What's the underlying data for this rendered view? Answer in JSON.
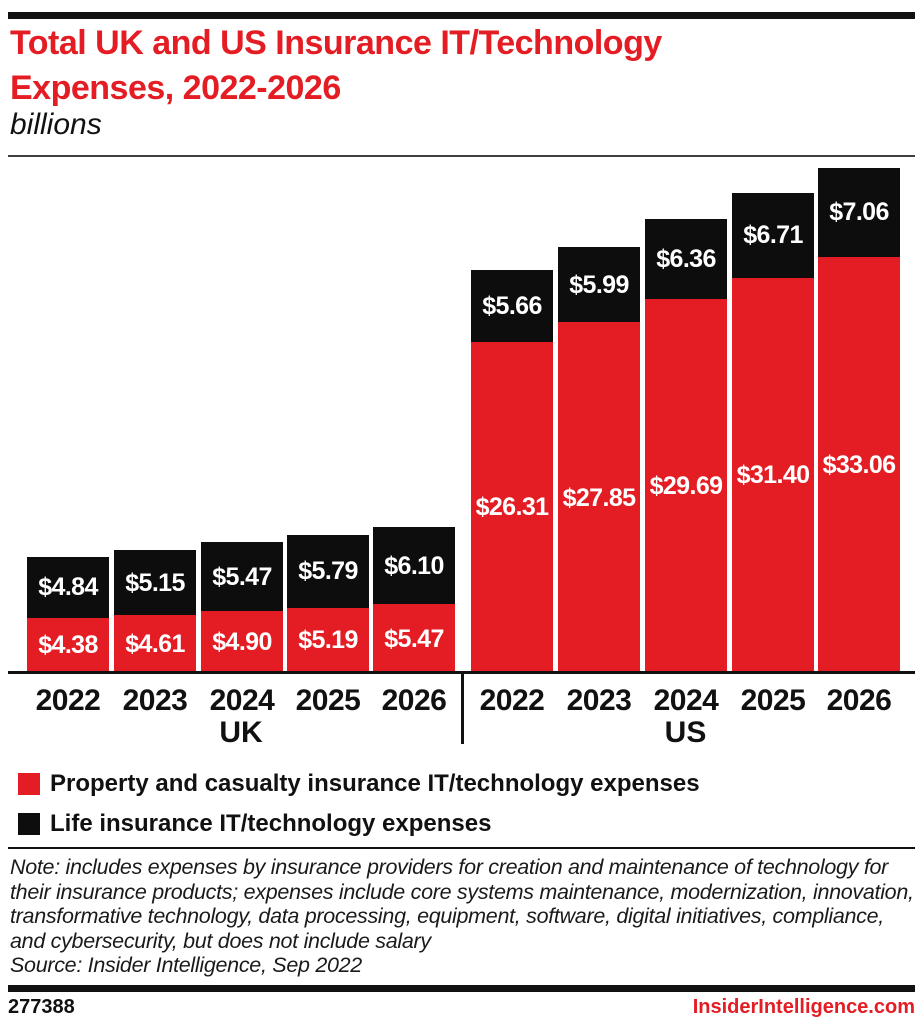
{
  "header": {
    "title": "Total UK and US Insurance IT/Technology Expenses, 2022-2026",
    "subtitle": "billions"
  },
  "chart_data": {
    "type": "bar",
    "stacked": true,
    "title": "Total UK and US Insurance IT/Technology Expenses, 2022-2026",
    "unit_label": "billions",
    "group_labels": [
      "UK",
      "US"
    ],
    "categories": [
      "2022",
      "2023",
      "2024",
      "2025",
      "2026",
      "2022",
      "2023",
      "2024",
      "2025",
      "2026"
    ],
    "series": [
      {
        "name": "Property and casualty insurance IT/technology expenses",
        "color": "#e31d23",
        "values": [
          4.38,
          4.61,
          4.9,
          5.19,
          5.47,
          26.31,
          27.85,
          29.69,
          31.4,
          33.06
        ]
      },
      {
        "name": "Life insurance IT/technology expenses",
        "color": "#0d0d0d",
        "values": [
          4.84,
          5.15,
          5.47,
          5.79,
          6.1,
          5.66,
          5.99,
          6.36,
          6.71,
          7.06
        ]
      }
    ],
    "value_prefix": "$",
    "value_decimals": 2,
    "ylim": [
      0,
      40.12
    ],
    "grid": false,
    "axis_labels_shown": false,
    "legend_position": "bottom-left"
  },
  "legend": {
    "items": [
      {
        "label": "Property and casualty insurance IT/technology expenses",
        "color": "#e31d23"
      },
      {
        "label": "Life insurance IT/technology expenses",
        "color": "#0d0d0d"
      }
    ]
  },
  "note": {
    "text": "Note: includes expenses by insurance providers for creation and maintenance of technology for their insurance products; expenses include core systems maintenance, modernization, innovation, transformative technology, data processing, equipment, software, digital initiatives, compliance, and cybersecurity, but does not include salary",
    "source": "Source: Insider Intelligence, Sep 2022"
  },
  "footer": {
    "chart_id": "277388",
    "site": "InsiderIntelligence.com"
  },
  "colors": {
    "accent_red": "#e31d23",
    "black": "#0d0d0d"
  }
}
